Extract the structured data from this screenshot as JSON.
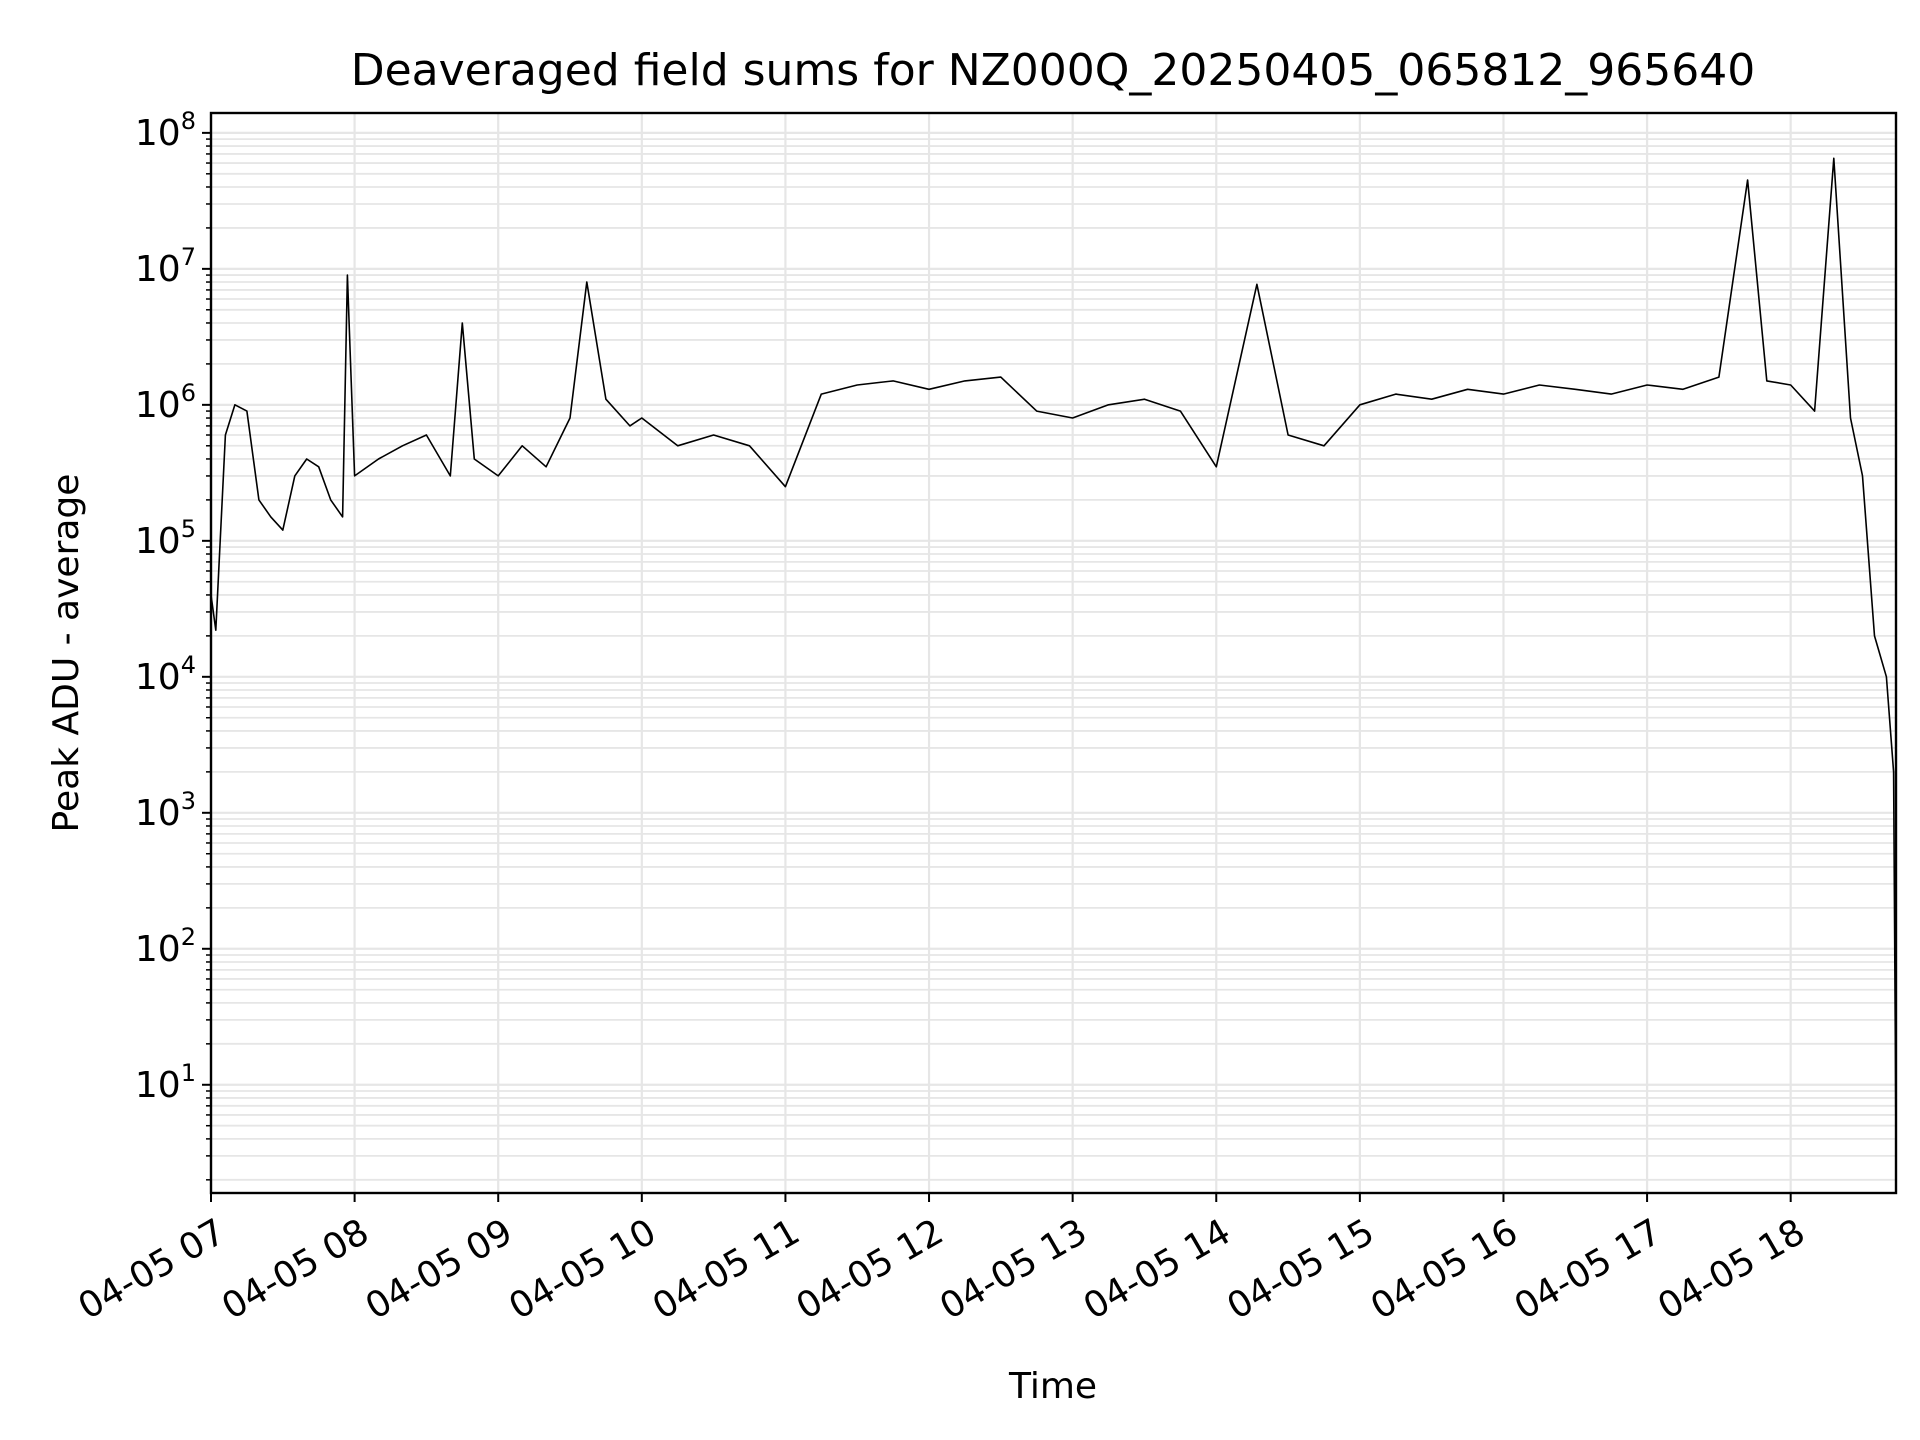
{
  "chart_data": {
    "type": "line",
    "title": "Deaveraged field sums for NZ000Q_20250405_065812_965640",
    "xlabel": "Time",
    "ylabel": "Peak ADU - average",
    "yscale": "log",
    "ylim": [
      1.6,
      140000000
    ],
    "xlim": [
      "2025-04-05 07:00",
      "2025-04-05 18:44"
    ],
    "grid": true,
    "line_color": "#000000",
    "x_tick_labels": [
      "04-05 07",
      "04-05 08",
      "04-05 09",
      "04-05 10",
      "04-05 11",
      "04-05 12",
      "04-05 13",
      "04-05 14",
      "04-05 15",
      "04-05 16",
      "04-05 17",
      "04-05 18"
    ],
    "y_ticks": [
      {
        "base": "10",
        "exp": "1"
      },
      {
        "base": "10",
        "exp": "2"
      },
      {
        "base": "10",
        "exp": "3"
      },
      {
        "base": "10",
        "exp": "4"
      },
      {
        "base": "10",
        "exp": "5"
      },
      {
        "base": "10",
        "exp": "6"
      },
      {
        "base": "10",
        "exp": "7"
      },
      {
        "base": "10",
        "exp": "8"
      }
    ],
    "series": [
      {
        "x": [
          "2025-04-05 07:00",
          "2025-04-05 07:02",
          "2025-04-05 07:06",
          "2025-04-05 07:10",
          "2025-04-05 07:15",
          "2025-04-05 07:20",
          "2025-04-05 07:25",
          "2025-04-05 07:30",
          "2025-04-05 07:35",
          "2025-04-05 07:40",
          "2025-04-05 07:45",
          "2025-04-05 07:50",
          "2025-04-05 07:55",
          "2025-04-05 07:57",
          "2025-04-05 08:00",
          "2025-04-05 08:10",
          "2025-04-05 08:20",
          "2025-04-05 08:30",
          "2025-04-05 08:40",
          "2025-04-05 08:45",
          "2025-04-05 08:50",
          "2025-04-05 09:00",
          "2025-04-05 09:10",
          "2025-04-05 09:20",
          "2025-04-05 09:30",
          "2025-04-05 09:37",
          "2025-04-05 09:45",
          "2025-04-05 09:55",
          "2025-04-05 10:00",
          "2025-04-05 10:15",
          "2025-04-05 10:30",
          "2025-04-05 10:45",
          "2025-04-05 11:00",
          "2025-04-05 11:15",
          "2025-04-05 11:30",
          "2025-04-05 11:45",
          "2025-04-05 12:00",
          "2025-04-05 12:15",
          "2025-04-05 12:30",
          "2025-04-05 12:45",
          "2025-04-05 13:00",
          "2025-04-05 13:15",
          "2025-04-05 13:30",
          "2025-04-05 13:45",
          "2025-04-05 14:00",
          "2025-04-05 14:17",
          "2025-04-05 14:30",
          "2025-04-05 14:45",
          "2025-04-05 15:00",
          "2025-04-05 15:15",
          "2025-04-05 15:30",
          "2025-04-05 15:45",
          "2025-04-05 16:00",
          "2025-04-05 16:15",
          "2025-04-05 16:30",
          "2025-04-05 16:45",
          "2025-04-05 17:00",
          "2025-04-05 17:15",
          "2025-04-05 17:30",
          "2025-04-05 17:42",
          "2025-04-05 17:50",
          "2025-04-05 18:00",
          "2025-04-05 18:10",
          "2025-04-05 18:18",
          "2025-04-05 18:25",
          "2025-04-05 18:30",
          "2025-04-05 18:35",
          "2025-04-05 18:40",
          "2025-04-05 18:43",
          "2025-04-05 18:44"
        ],
        "y": [
          40000,
          22000,
          600000,
          1000000,
          900000,
          200000,
          150000,
          120000,
          300000,
          400000,
          350000,
          200000,
          150000,
          9000000,
          300000,
          400000,
          500000,
          600000,
          300000,
          4000000,
          400000,
          300000,
          500000,
          350000,
          800000,
          8000000,
          1100000,
          700000,
          800000,
          500000,
          600000,
          500000,
          250000,
          1200000,
          1400000,
          1500000,
          1300000,
          1500000,
          1600000,
          900000,
          800000,
          1000000,
          1100000,
          900000,
          350000,
          7700000,
          600000,
          500000,
          1000000,
          1200000,
          1100000,
          1300000,
          1200000,
          1400000,
          1300000,
          1200000,
          1400000,
          1300000,
          1600000,
          45000000,
          1500000,
          1400000,
          900000,
          65000000,
          800000,
          300000,
          20000,
          10000,
          2000,
          3.5
        ]
      }
    ]
  }
}
